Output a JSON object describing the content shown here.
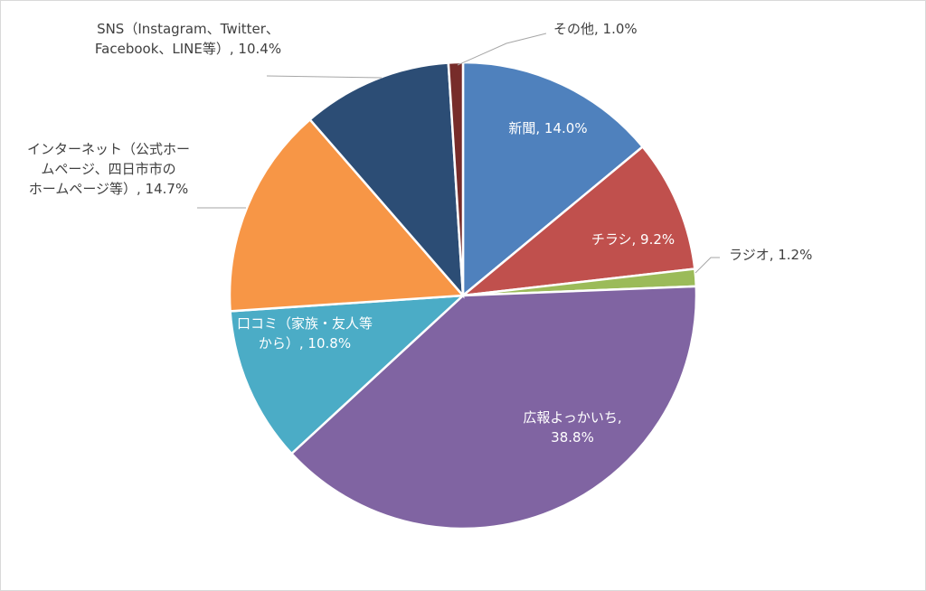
{
  "chart_data": {
    "type": "pie",
    "title": "",
    "start_angle_deg": 0,
    "direction": "clockwise",
    "slices": [
      {
        "label": "新聞",
        "value": 14.0,
        "value_text": "14.0%",
        "color": "#4f81bd",
        "label_lines": [
          "新聞, 14.0%"
        ]
      },
      {
        "label": "チラシ",
        "value": 9.2,
        "value_text": "9.2%",
        "color": "#c0504d",
        "label_lines": [
          "チラシ, 9.2%"
        ]
      },
      {
        "label": "ラジオ",
        "value": 1.2,
        "value_text": "1.2%",
        "color": "#9bbb59",
        "label_lines": [
          "ラジオ, 1.2%"
        ]
      },
      {
        "label": "広報よっかいち",
        "value": 38.8,
        "value_text": "38.8%",
        "color": "#8064a2",
        "label_lines": [
          "広報よっかいち,",
          "38.8%"
        ]
      },
      {
        "label": "口コミ（家族・友人等から）",
        "value": 10.8,
        "value_text": "10.8%",
        "color": "#4bacc6",
        "label_lines": [
          "口コミ（家族・友人等",
          "から）, 10.8%"
        ]
      },
      {
        "label": "インターネット（公式ホームページ、四日市市のホームページ等）",
        "value": 14.7,
        "value_text": "14.7%",
        "color": "#f79646",
        "label_lines": [
          "インターネット（公式ホー",
          "ムページ、四日市市の",
          "ホームページ等）, 14.7%"
        ]
      },
      {
        "label": "SNS（Instagram、Twitter、Facebook、LINE等）",
        "value": 10.4,
        "value_text": "10.4%",
        "color": "#2c4d75",
        "label_lines": [
          "SNS（Instagram、Twitter、",
          "Facebook、LINE等）, 10.4%"
        ]
      },
      {
        "label": "その他",
        "value": 1.0,
        "value_text": "1.0%",
        "color": "#772c2a",
        "label_lines": [
          "その他, 1.0%"
        ]
      }
    ]
  }
}
